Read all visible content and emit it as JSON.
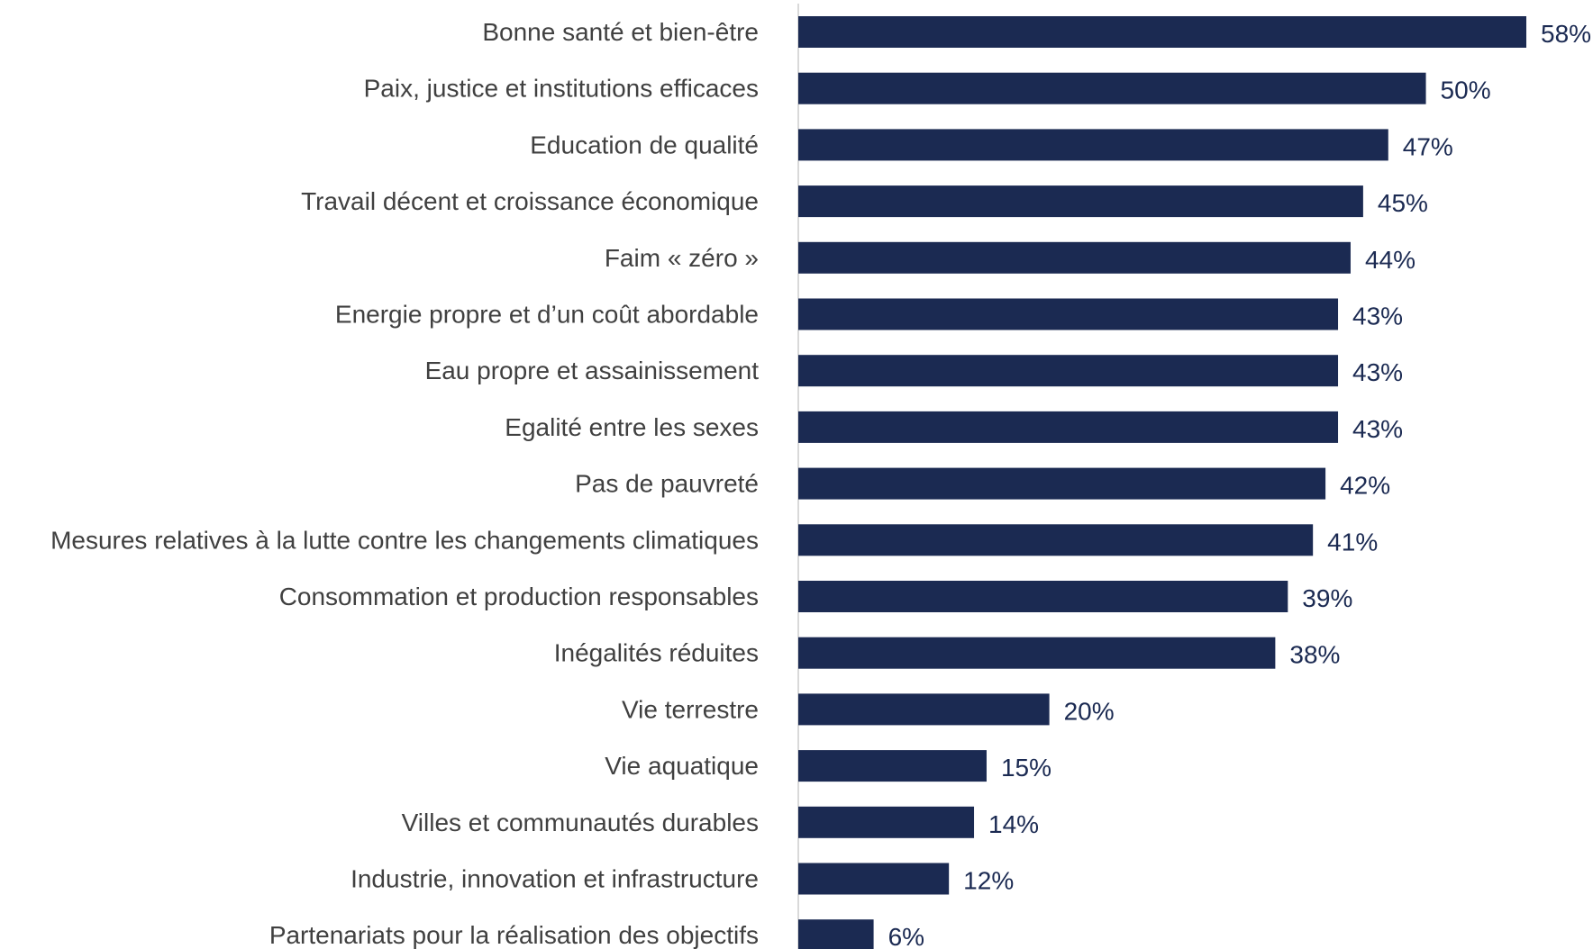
{
  "chart_data": {
    "type": "bar",
    "orientation": "horizontal",
    "categories": [
      "Bonne santé et bien-être",
      "Paix, justice et institutions efficaces",
      "Education de qualité",
      "Travail décent et croissance économique",
      "Faim « zéro »",
      "Energie propre et d’un coût abordable",
      "Eau propre et assainissement",
      "Egalité entre les sexes",
      "Pas de pauvreté",
      "Mesures relatives à la lutte contre les changements climatiques",
      "Consommation et production responsables",
      "Inégalités réduites",
      "Vie terrestre",
      "Vie aquatique",
      "Villes et communautés durables",
      "Industrie, innovation et infrastructure",
      "Partenariats pour la réalisation des objectifs"
    ],
    "values": [
      58,
      50,
      47,
      45,
      44,
      43,
      43,
      43,
      42,
      41,
      39,
      38,
      20,
      15,
      14,
      12,
      6
    ],
    "value_labels": [
      "58%",
      "50%",
      "47%",
      "45%",
      "44%",
      "43%",
      "43%",
      "43%",
      "42%",
      "41%",
      "39%",
      "38%",
      "20%",
      "15%",
      "14%",
      "12%",
      "6%"
    ],
    "unit": "%",
    "xlim": [
      0,
      58
    ],
    "grid": false,
    "legend": "none",
    "colors": {
      "bar": "#1b2a52",
      "value_label": "#1b2a52",
      "category_label": "#404040",
      "axis": "#d9d9d9"
    }
  }
}
